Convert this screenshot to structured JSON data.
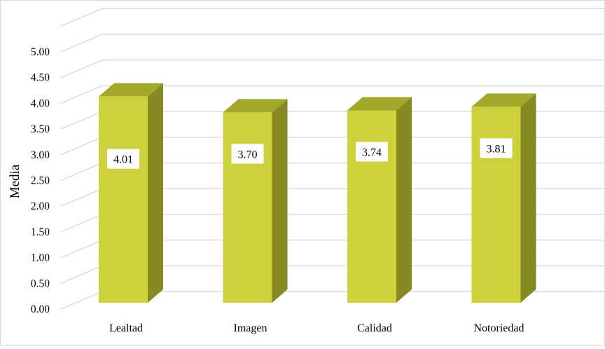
{
  "chart_data": {
    "type": "bar",
    "categories": [
      "Lealtad",
      "Imagen",
      "Calidad",
      "Notoriedad"
    ],
    "values": [
      4.01,
      3.7,
      3.74,
      3.81
    ],
    "value_labels": [
      "4.01",
      "3.70",
      "3.74",
      "3.81"
    ],
    "ylabel": "Media",
    "xlabel": "",
    "ylim": [
      0,
      5
    ],
    "yticks": [
      "0.00",
      "0.50",
      "1.00",
      "1.50",
      "2.00",
      "2.50",
      "3.00",
      "3.50",
      "4.00",
      "4.50",
      "5.00"
    ],
    "grid": true,
    "legend": "none",
    "style": "3d-column",
    "colors": {
      "bar_front": "#cdd23c",
      "bar_side": "#868a22",
      "bar_top": "#a3a82b",
      "grid": "#d9d9d9"
    }
  }
}
